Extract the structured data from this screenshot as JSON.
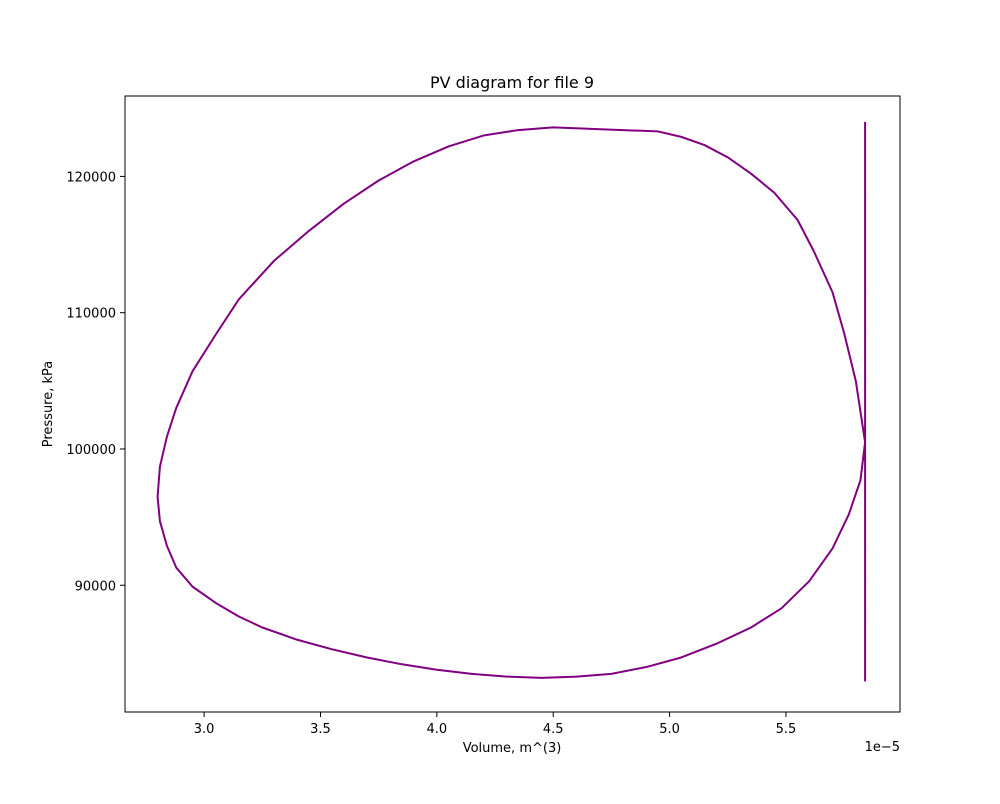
{
  "chart_data": {
    "type": "line",
    "title": "PV diagram for file 9",
    "xlabel": "Volume, m^(3)",
    "ylabel": "Pressure, kPa",
    "x_offset_label": "1e−5",
    "xlim": [
      2.66,
      5.99
    ],
    "ylim": [
      80700,
      125900
    ],
    "x_ticks": [
      3.0,
      3.5,
      4.0,
      4.5,
      5.0,
      5.5
    ],
    "x_tick_labels": [
      "3.0",
      "3.5",
      "4.0",
      "4.5",
      "5.0",
      "5.5"
    ],
    "y_ticks": [
      90000,
      100000,
      110000,
      120000
    ],
    "y_tick_labels": [
      "90000",
      "100000",
      "110000",
      "120000"
    ],
    "grid": false,
    "legend": "none",
    "color": "#800080",
    "series": [
      {
        "description_x_unit": "x values are shown on the axis as multiples of 1e-5",
        "x": [
          5.84,
          5.8,
          5.75,
          5.7,
          5.62,
          5.55,
          5.45,
          5.35,
          5.25,
          5.15,
          5.05,
          4.95,
          4.8,
          4.65,
          4.5,
          4.35,
          4.2,
          4.05,
          3.9,
          3.75,
          3.6,
          3.45,
          3.3,
          3.15,
          3.05,
          2.95,
          2.88,
          2.84,
          2.81,
          2.8,
          2.81,
          2.84,
          2.88,
          2.95,
          3.05,
          3.15,
          3.25,
          3.4,
          3.55,
          3.7,
          3.85,
          4.0,
          4.15,
          4.3,
          4.45,
          4.6,
          4.75,
          4.9,
          5.05,
          5.2,
          5.35,
          5.48,
          5.6,
          5.7,
          5.77,
          5.82,
          5.84,
          5.84,
          5.84
        ],
        "y": [
          100500,
          105000,
          108500,
          111500,
          114500,
          116800,
          118800,
          120200,
          121400,
          122300,
          122900,
          123300,
          123400,
          123500,
          123600,
          123400,
          123000,
          122200,
          121100,
          119700,
          118000,
          116000,
          113800,
          111000,
          108400,
          105700,
          103000,
          100900,
          98700,
          96500,
          94700,
          92900,
          91300,
          89900,
          88700,
          87700,
          86900,
          86000,
          85300,
          84700,
          84200,
          83800,
          83500,
          83300,
          83200,
          83300,
          83500,
          84000,
          84700,
          85700,
          86900,
          88300,
          90300,
          92700,
          95200,
          97700,
          100500,
          83000,
          124000
        ]
      }
    ]
  }
}
